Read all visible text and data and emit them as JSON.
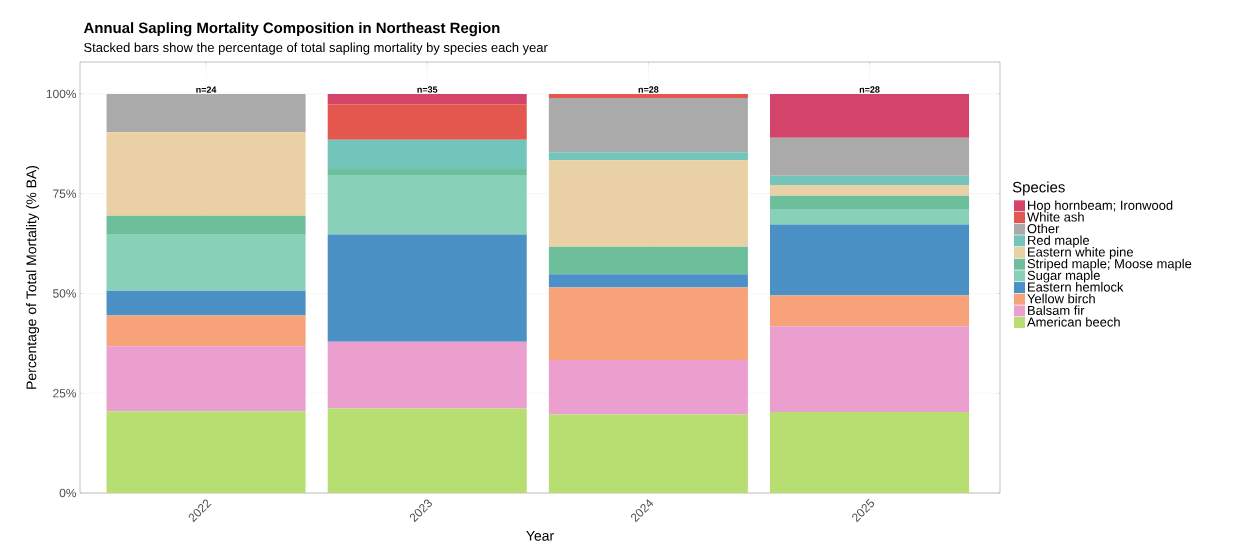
{
  "chart_data": {
    "type": "bar",
    "stacked": true,
    "title": "Annual Sapling Mortality Composition in Northeast Region",
    "subtitle": "Stacked bars show the percentage of total sapling mortality by species each year",
    "xlabel": "Year",
    "ylabel": "Percentage of Total Mortality (% BA)",
    "legend_title": "Species",
    "categories": [
      "2022",
      "2023",
      "2024",
      "2025"
    ],
    "series": [
      {
        "name": "American beech",
        "color": "#b7de70",
        "values": [
          20.5,
          21.2,
          19.7,
          20.3
        ]
      },
      {
        "name": "Balsam fir",
        "color": "#eb9fcf",
        "values": [
          16.3,
          16.7,
          13.6,
          21.5
        ]
      },
      {
        "name": "Yellow birch",
        "color": "#f8a27a",
        "values": [
          7.7,
          0,
          18.2,
          7.7
        ]
      },
      {
        "name": "Eastern hemlock",
        "color": "#4b91c6",
        "values": [
          6.2,
          26.9,
          3.3,
          17.8
        ]
      },
      {
        "name": "Sugar maple",
        "color": "#88d0b8",
        "values": [
          14.0,
          14.9,
          0,
          3.7
        ]
      },
      {
        "name": "Striped maple; Moose maple",
        "color": "#6dbf9b",
        "values": [
          4.8,
          1.5,
          6.9,
          3.5
        ]
      },
      {
        "name": "Eastern white pine",
        "color": "#e9d0a5",
        "values": [
          20.9,
          0,
          21.7,
          2.7
        ]
      },
      {
        "name": "Red maple",
        "color": "#73c4bb",
        "values": [
          0,
          7.3,
          2.0,
          2.3
        ]
      },
      {
        "name": "Other",
        "color": "#aaaaaa",
        "values": [
          9.6,
          0,
          13.6,
          9.5
        ]
      },
      {
        "name": "White ash",
        "color": "#e4574f",
        "values": [
          0,
          8.9,
          1.0,
          0
        ]
      },
      {
        "name": "Hop hornbeam; Ironwood",
        "color": "#d4436a",
        "values": [
          0,
          2.6,
          0,
          11.0
        ]
      }
    ],
    "annotations": [
      {
        "text": "n=24",
        "x": "2022",
        "y": 100
      },
      {
        "text": "n=35",
        "x": "2023",
        "y": 100
      },
      {
        "text": "n=28",
        "x": "2024",
        "y": 100
      },
      {
        "text": "n=28",
        "x": "2025",
        "y": 100
      }
    ],
    "ylim": [
      0,
      108
    ],
    "yticks": [
      {
        "value": 0,
        "label": "0%"
      },
      {
        "value": 25,
        "label": "25%"
      },
      {
        "value": 50,
        "label": "50%"
      },
      {
        "value": 75,
        "label": "75%"
      },
      {
        "value": 100,
        "label": "100%"
      }
    ],
    "grid": true,
    "legend": "right"
  }
}
